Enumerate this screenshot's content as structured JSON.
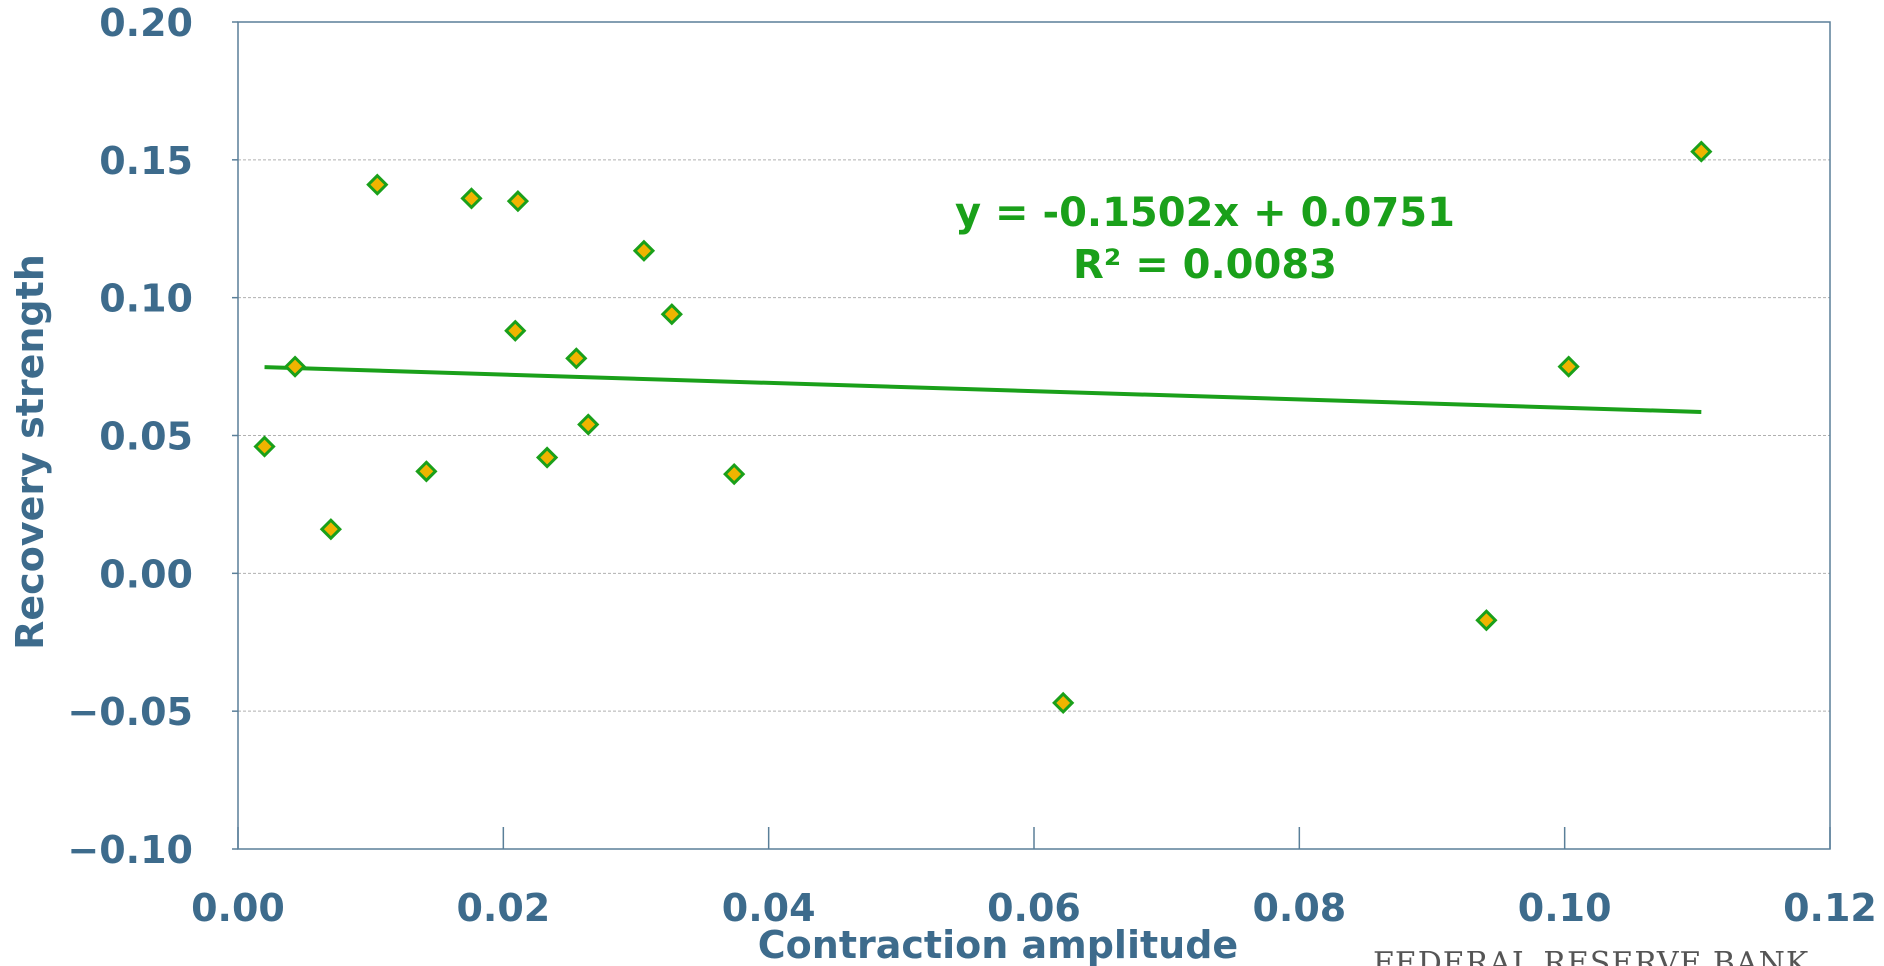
{
  "chart_data": {
    "type": "scatter",
    "xlabel": "Contraction amplitude",
    "ylabel": "Recovery strength",
    "xlim": [
      0,
      0.12
    ],
    "ylim": [
      -0.1,
      0.2
    ],
    "x_ticks": [
      "0.00",
      "0.02",
      "0.04",
      "0.06",
      "0.08",
      "0.10",
      "0.12"
    ],
    "y_ticks": [
      "0.20",
      "0.15",
      "0.10",
      "0.05",
      "0.00",
      "−0.05",
      "−0.10"
    ],
    "x_tick_values": [
      0,
      0.02,
      0.04,
      0.06,
      0.08,
      0.1,
      0.12
    ],
    "y_tick_values": [
      0.2,
      0.15,
      0.1,
      0.05,
      0.0,
      -0.05,
      -0.1
    ],
    "grid": "horizontal",
    "points": [
      {
        "x": 0.002,
        "y": 0.046
      },
      {
        "x": 0.0043,
        "y": 0.075
      },
      {
        "x": 0.007,
        "y": 0.016
      },
      {
        "x": 0.0105,
        "y": 0.141
      },
      {
        "x": 0.0142,
        "y": 0.037
      },
      {
        "x": 0.0176,
        "y": 0.136
      },
      {
        "x": 0.0209,
        "y": 0.088
      },
      {
        "x": 0.0211,
        "y": 0.135
      },
      {
        "x": 0.0233,
        "y": 0.042
      },
      {
        "x": 0.0255,
        "y": 0.078
      },
      {
        "x": 0.0264,
        "y": 0.054
      },
      {
        "x": 0.0306,
        "y": 0.117
      },
      {
        "x": 0.0327,
        "y": 0.094
      },
      {
        "x": 0.0374,
        "y": 0.036
      },
      {
        "x": 0.0622,
        "y": -0.047
      },
      {
        "x": 0.0941,
        "y": -0.017
      },
      {
        "x": 0.1003,
        "y": 0.075
      },
      {
        "x": 0.1103,
        "y": 0.153
      }
    ],
    "trendline": {
      "slope": -0.1502,
      "intercept": 0.0751,
      "x_range": [
        0.002,
        0.1103
      ],
      "equation": "y = -0.1502x + 0.0751",
      "r_squared": "R² = 0.0083"
    },
    "colors": {
      "marker_fill": "#f0b400",
      "marker_stroke": "#1aa01a",
      "trendline": "#1aa01a",
      "axis_text": "#3d6b8c",
      "axis_line": "#5a7f99",
      "grid": "#b0b0b0"
    }
  },
  "watermark": "FEDERAL RESERVE BANK"
}
